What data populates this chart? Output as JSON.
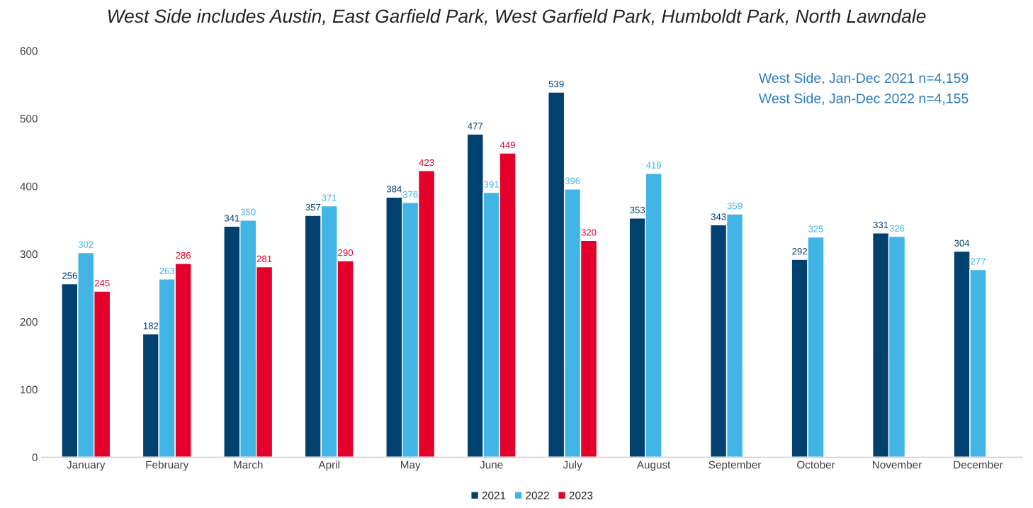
{
  "chart_data": {
    "type": "bar",
    "title": "West Side includes Austin, East Garfield Park, West Garfield Park, Humboldt Park, North Lawndale",
    "categories": [
      "January",
      "February",
      "March",
      "April",
      "May",
      "June",
      "July",
      "August",
      "September",
      "October",
      "November",
      "December"
    ],
    "series": [
      {
        "name": "2021",
        "color": "#004170",
        "values": [
          256,
          182,
          341,
          357,
          384,
          477,
          539,
          353,
          343,
          292,
          331,
          304
        ]
      },
      {
        "name": "2022",
        "color": "#41b6e6",
        "values": [
          302,
          263,
          350,
          371,
          376,
          391,
          396,
          419,
          359,
          325,
          326,
          277
        ]
      },
      {
        "name": "2023",
        "color": "#e4002b",
        "values": [
          245,
          286,
          281,
          290,
          423,
          449,
          320,
          null,
          null,
          null,
          null,
          null
        ]
      }
    ],
    "ylim": [
      0,
      600
    ],
    "yticks": [
      0,
      100,
      200,
      300,
      400,
      500,
      600
    ],
    "annotations": [
      "West Side, Jan-Dec 2021 n=4,159",
      "West Side, Jan-Dec 2022 n=4,155"
    ],
    "data_labels": true,
    "legend": "bottom",
    "grid": false
  }
}
